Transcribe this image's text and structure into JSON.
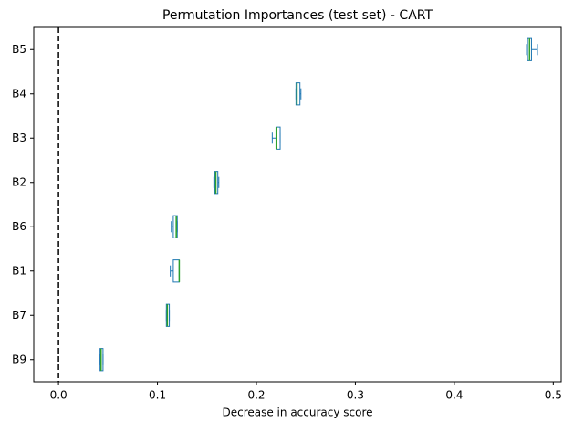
{
  "chart_data": {
    "type": "box",
    "title": "Permutation Importances (test set) - CART",
    "x_label": "Decrease in accuracy score",
    "categories": [
      "B5",
      "B4",
      "B3",
      "B2",
      "B6",
      "B1",
      "B7",
      "B9"
    ],
    "stats": [
      {
        "whislo": 0.473,
        "q1": 0.474,
        "med": 0.476,
        "q3": 0.478,
        "whishi": 0.484
      },
      {
        "whislo": 0.24,
        "q1": 0.24,
        "med": 0.241,
        "q3": 0.244,
        "whishi": 0.245
      },
      {
        "whislo": 0.216,
        "q1": 0.22,
        "med": 0.22,
        "q3": 0.224,
        "whishi": 0.224
      },
      {
        "whislo": 0.157,
        "q1": 0.158,
        "med": 0.159,
        "q3": 0.161,
        "whishi": 0.162
      },
      {
        "whislo": 0.114,
        "q1": 0.116,
        "med": 0.119,
        "q3": 0.12,
        "whishi": 0.12
      },
      {
        "whislo": 0.113,
        "q1": 0.116,
        "med": 0.122,
        "q3": 0.122,
        "whishi": 0.122
      },
      {
        "whislo": 0.109,
        "q1": 0.109,
        "med": 0.11,
        "q3": 0.112,
        "whishi": 0.112
      },
      {
        "whislo": 0.042,
        "q1": 0.042,
        "med": 0.043,
        "q3": 0.045,
        "whishi": 0.045
      }
    ],
    "box_color": "#1f77b4",
    "median_color": "#2ca02c",
    "vline": 0,
    "xlim": [
      -0.025,
      0.508
    ],
    "xticks": [
      {
        "value": 0,
        "label": "0.0"
      },
      0.1,
      0.2,
      0.3,
      0.4,
      0.5
    ]
  }
}
